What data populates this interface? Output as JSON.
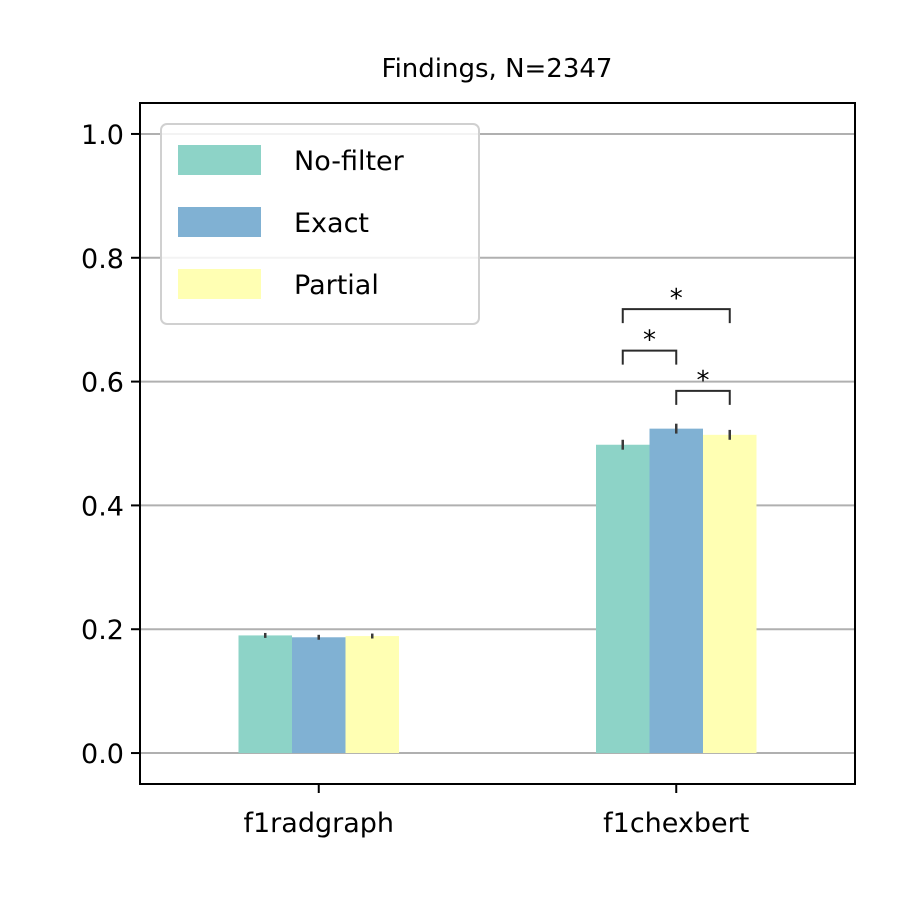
{
  "chart_data": {
    "type": "bar",
    "title": "Findings, N=2347",
    "xlabel": "",
    "ylabel": "",
    "categories": [
      "f1radgraph",
      "f1chexbert"
    ],
    "series": [
      {
        "name": "No-filter",
        "color": "#8dd3c7",
        "values": [
          0.19,
          0.498
        ],
        "err": [
          0.004,
          0.008
        ]
      },
      {
        "name": "Exact",
        "color": "#80b1d3",
        "values": [
          0.187,
          0.524
        ],
        "err": [
          0.004,
          0.008
        ]
      },
      {
        "name": "Partial",
        "color": "#ffffb3",
        "values": [
          0.189,
          0.514
        ],
        "err": [
          0.004,
          0.008
        ]
      }
    ],
    "ylim": [
      -0.05,
      1.05
    ],
    "yticks": [
      0.0,
      0.2,
      0.4,
      0.6,
      0.8,
      1.0
    ],
    "ytick_labels": [
      "0.0",
      "0.2",
      "0.4",
      "0.6",
      "0.8",
      "1.0"
    ],
    "grid": "horizontal",
    "legend_position": "top-left",
    "significance": [
      {
        "category": "f1chexbert",
        "from": "No-filter",
        "to": "Exact",
        "label": "*"
      },
      {
        "category": "f1chexbert",
        "from": "No-filter",
        "to": "Partial",
        "label": "*"
      },
      {
        "category": "f1chexbert",
        "from": "Exact",
        "to": "Partial",
        "label": "*"
      }
    ]
  }
}
